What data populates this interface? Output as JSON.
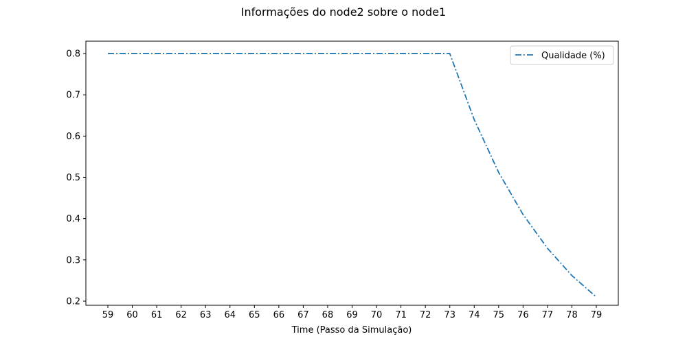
{
  "chart_data": {
    "type": "line",
    "title": "Informações do node2 sobre o node1",
    "xlabel": "Time (Passo da Simulação)",
    "ylabel": "",
    "x": [
      59,
      60,
      61,
      62,
      63,
      64,
      65,
      66,
      67,
      68,
      69,
      70,
      71,
      72,
      73,
      74,
      75,
      76,
      77,
      78,
      79
    ],
    "xticks": [
      "59",
      "60",
      "61",
      "62",
      "63",
      "64",
      "65",
      "66",
      "67",
      "68",
      "69",
      "70",
      "71",
      "72",
      "73",
      "74",
      "75",
      "76",
      "77",
      "78",
      "79"
    ],
    "yticks": [
      "0.2",
      "0.3",
      "0.4",
      "0.5",
      "0.6",
      "0.7",
      "0.8"
    ],
    "xlim": [
      58.1,
      79.9
    ],
    "ylim": [
      0.19,
      0.83
    ],
    "grid": false,
    "legend_position": "top-right",
    "series": [
      {
        "name": "Qualidade (%)",
        "color": "#1f77b4",
        "line_style": "dash-dot",
        "values": [
          0.8,
          0.8,
          0.8,
          0.8,
          0.8,
          0.8,
          0.8,
          0.8,
          0.8,
          0.8,
          0.8,
          0.8,
          0.8,
          0.8,
          0.8,
          0.64,
          0.512,
          0.41,
          0.328,
          0.262,
          0.21
        ]
      }
    ]
  }
}
